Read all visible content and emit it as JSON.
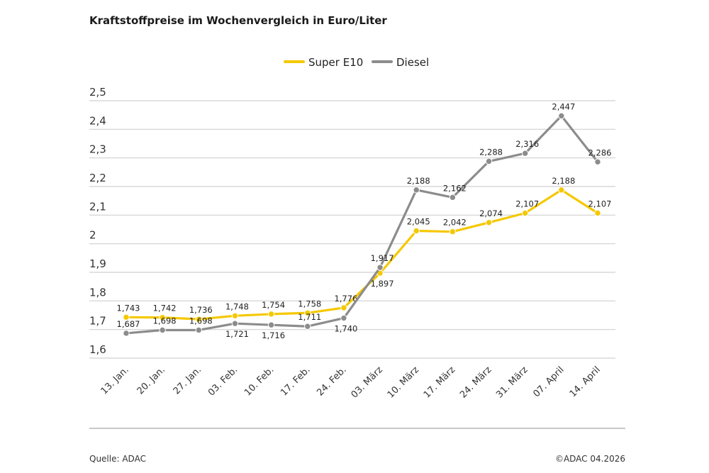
{
  "title": "Kraftstoffpreise im Wochenvergleich in Euro/Liter",
  "source": "Quelle: ADAC",
  "copyright": "©ADAC 04.2026",
  "chart_data": {
    "type": "line",
    "title": "Kraftstoffpreise im Wochenvergleich in Euro/Liter",
    "xlabel": "",
    "ylabel": "",
    "ylim": [
      1.6,
      2.5
    ],
    "yticks": [
      "1,6",
      "1,7",
      "1,8",
      "1,9",
      "2",
      "2,1",
      "2,2",
      "2,3",
      "2,4",
      "2,5"
    ],
    "ytick_values": [
      1.6,
      1.7,
      1.8,
      1.9,
      2.0,
      2.1,
      2.2,
      2.3,
      2.4,
      2.5
    ],
    "grid": true,
    "legend": "top-center",
    "categories": [
      "13. Jan.",
      "20. Jan.",
      "27. Jan.",
      "03. Feb.",
      "10. Feb.",
      "17. Feb.",
      "24. Feb.",
      "03. März",
      "10. März",
      "17. März",
      "24. März",
      "31. März",
      "07. April",
      "14. April"
    ],
    "series": [
      {
        "name": "Super E10",
        "color": "#f5c800",
        "values": [
          1.743,
          1.742,
          1.736,
          1.748,
          1.754,
          1.758,
          1.776,
          1.897,
          2.045,
          2.042,
          2.074,
          2.107,
          2.188,
          2.107
        ],
        "labels": [
          "1,743",
          "1,742",
          "1,736",
          "1,748",
          "1,754",
          "1,758",
          "1,776",
          "1,897",
          "2,045",
          "2,042",
          "2,074",
          "2,107",
          "2,188",
          "2,107"
        ]
      },
      {
        "name": "Diesel",
        "color": "#8c8c8c",
        "values": [
          1.687,
          1.698,
          1.698,
          1.721,
          1.716,
          1.711,
          1.74,
          1.917,
          2.188,
          2.162,
          2.288,
          2.316,
          2.447,
          2.286
        ],
        "labels": [
          "1,687",
          "1,698",
          "1,698",
          "1,721",
          "1,716",
          "1,711",
          "1,740",
          "1,917",
          "2,188",
          "2,162",
          "2,288",
          "2,316",
          "2,447",
          "2,286"
        ]
      }
    ]
  }
}
